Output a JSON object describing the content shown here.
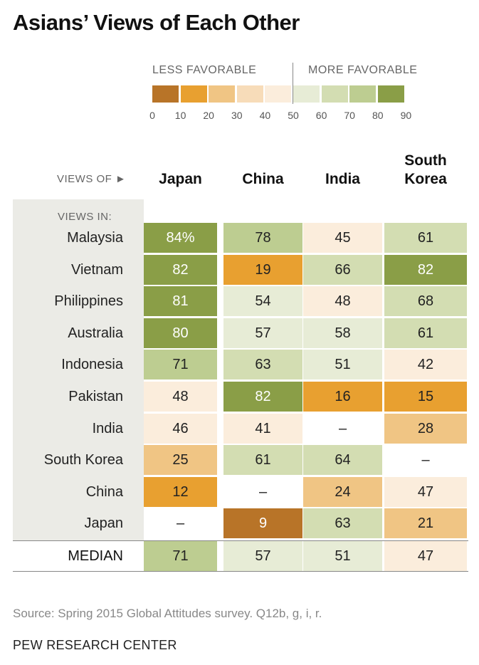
{
  "title": "Asians’ Views of Each Other",
  "legend": {
    "less_label": "LESS FAVORABLE",
    "more_label": "MORE FAVORABLE",
    "ticks": [
      "0",
      "10",
      "20",
      "30",
      "40",
      "50",
      "60",
      "70",
      "80",
      "90"
    ],
    "colors": [
      "#b87428",
      "#e8a030",
      "#f0c584",
      "#f7dcb9",
      "#fbeddc",
      "#e7ecd6",
      "#d3ddb2",
      "#bdcd91",
      "#8a9e47"
    ]
  },
  "header": {
    "views_of_label": "VIEWS OF ►",
    "views_in_label": "VIEWS IN:"
  },
  "chart_data": {
    "type": "table",
    "title": "Asians’ Views of Each Other",
    "columns": [
      "Japan",
      "China",
      "India",
      "South Korea"
    ],
    "rows": [
      {
        "label": "Malaysia",
        "values": [
          "84%",
          "78",
          "45",
          "61"
        ]
      },
      {
        "label": "Vietnam",
        "values": [
          "82",
          "19",
          "66",
          "82"
        ]
      },
      {
        "label": "Philippines",
        "values": [
          "81",
          "54",
          "48",
          "68"
        ]
      },
      {
        "label": "Australia",
        "values": [
          "80",
          "57",
          "58",
          "61"
        ]
      },
      {
        "label": "Indonesia",
        "values": [
          "71",
          "63",
          "51",
          "42"
        ]
      },
      {
        "label": "Pakistan",
        "values": [
          "48",
          "82",
          "16",
          "15"
        ]
      },
      {
        "label": "India",
        "values": [
          "46",
          "41",
          "–",
          "28"
        ]
      },
      {
        "label": "South Korea",
        "values": [
          "25",
          "61",
          "64",
          "–"
        ]
      },
      {
        "label": "China",
        "values": [
          "12",
          "–",
          "24",
          "47"
        ]
      },
      {
        "label": "Japan",
        "values": [
          "–",
          "9",
          "63",
          "21"
        ]
      }
    ],
    "median": {
      "label": "MEDIAN",
      "values": [
        "71",
        "57",
        "51",
        "47"
      ]
    },
    "scale_range": [
      0,
      90
    ]
  },
  "footer": {
    "source": "Source: Spring 2015 Global Attitudes survey. Q12b, g, i, r.",
    "org": "PEW RESEARCH CENTER"
  }
}
